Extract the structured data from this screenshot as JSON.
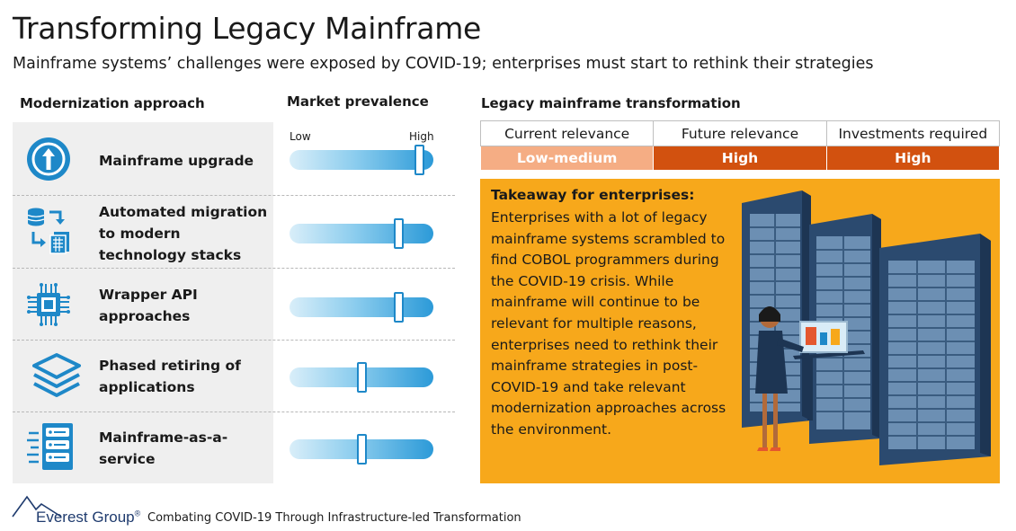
{
  "header": {
    "title": "Transforming Legacy Mainframe",
    "subtitle": "Mainframe systems’ challenges were exposed by COVID-19; enterprises must start to rethink their strategies"
  },
  "columns": {
    "approach": "Modernization approach",
    "prevalence": "Market prevalence",
    "transformation": "Legacy mainframe transformation"
  },
  "scale": {
    "low": "Low",
    "high": "High"
  },
  "approaches": [
    {
      "label": "Mainframe upgrade",
      "icon": "upward-arrow-circle-icon",
      "prevalence": 0.9
    },
    {
      "label": "Automated migration to modern technology stacks",
      "icon": "database-migration-icon",
      "prevalence": 0.76
    },
    {
      "label": "Wrapper API approaches",
      "icon": "chip-icon",
      "prevalence": 0.76
    },
    {
      "label": "Phased retiring of applications",
      "icon": "layers-icon",
      "prevalence": 0.5
    },
    {
      "label": "Mainframe-as-a-service",
      "icon": "server-stack-icon",
      "prevalence": 0.5
    }
  ],
  "relevance_table": {
    "headers": [
      "Current relevance",
      "Future relevance",
      "Investments required"
    ],
    "values": [
      "Low-medium",
      "High",
      "High"
    ],
    "colors": [
      "#f5ad84",
      "#d2510f",
      "#d2510f"
    ]
  },
  "takeaway": {
    "title": "Takeaway for enterprises:",
    "text": "Enterprises with a lot of legacy mainframe systems scrambled to find COBOL programmers during the COVID-19 crisis. While mainframe will continue to be relevant for multiple reasons, enterprises need to rethink their mainframe strategies in post-COVID-19 and take relevant modernization approaches across the environment."
  },
  "footer": {
    "brand": "Everest Group",
    "registered": "®",
    "caption": "Combating COVID-19 Through Infrastructure-led Transformation"
  },
  "colors": {
    "icon_blue": "#1e88c8",
    "accent_orange": "#f7a81b",
    "high_orange": "#d2510f",
    "lowmed_peach": "#f5ad84"
  }
}
